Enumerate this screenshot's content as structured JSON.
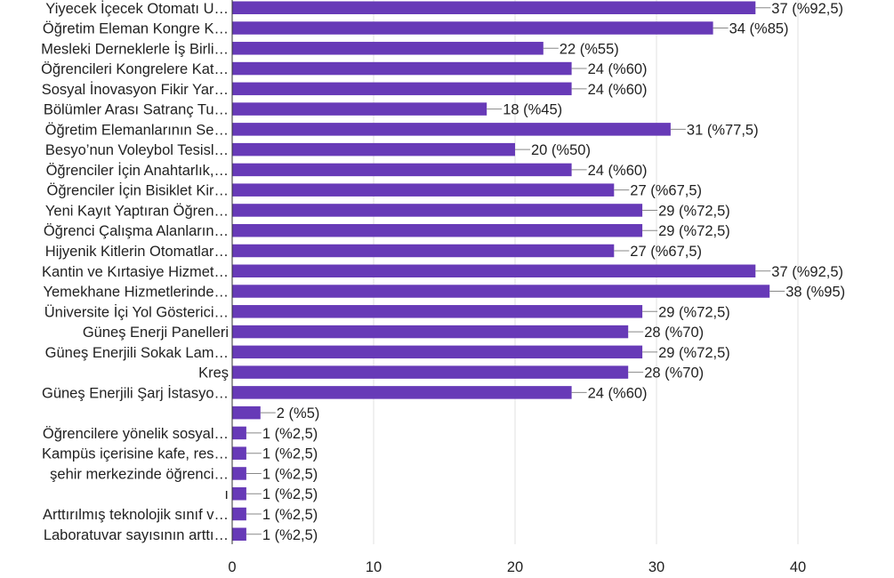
{
  "chart_data": {
    "type": "bar",
    "orientation": "horizontal",
    "categories": [
      "Yiyecek İçecek Otomatı U…",
      "Öğretim Eleman Kongre K…",
      "Mesleki Derneklerle İş Birli…",
      "Öğrencileri Kongrelere Kat…",
      "Sosyal İnovasyon Fikir Yar…",
      "Bölümler Arası Satranç Tu…",
      "Öğretim Elemanlarının Se…",
      "Besyo’nun Voleybol Tesisl…",
      "Öğrenciler İçin Anahtarlık,…",
      "Öğrenciler İçin Bisiklet Kir…",
      "Yeni Kayıt Yaptıran Öğren…",
      "Öğrenci Çalışma Alanların…",
      "Hijyenik Kitlerin Otomatlar…",
      "Kantin ve Kırtasiye Hizmet…",
      "Yemekhane Hizmetlerinde…",
      "Üniversite İçi Yol Gösterici…",
      "Güneş Enerji Panelleri",
      "Güneş Enerjili Sokak Lam…",
      "Kreş",
      "Güneş Enerjili Şarj İstasyo…",
      "",
      "Öğrencilere yönelik sosyal…",
      "Kampüs içerisine kafe, res…",
      "şehir merkezinde öğrenci…",
      "ı",
      "Arttırılmış teknolojik sınıf v…",
      "Laboratuvar sayısının arttı…"
    ],
    "values": [
      37,
      34,
      22,
      24,
      24,
      18,
      31,
      20,
      24,
      27,
      29,
      29,
      27,
      37,
      38,
      29,
      28,
      29,
      28,
      24,
      2,
      1,
      1,
      1,
      1,
      1,
      1
    ],
    "data_labels": [
      "37 (%92,5)",
      "34 (%85)",
      "22 (%55)",
      "24 (%60)",
      "24 (%60)",
      "18 (%45)",
      "31 (%77,5)",
      "20 (%50)",
      "24 (%60)",
      "27 (%67,5)",
      "29 (%72,5)",
      "29 (%72,5)",
      "27 (%67,5)",
      "37 (%92,5)",
      "38 (%95)",
      "29 (%72,5)",
      "28 (%70)",
      "29 (%72,5)",
      "28 (%70)",
      "24 (%60)",
      "2 (%5)",
      "1 (%2,5)",
      "1 (%2,5)",
      "1 (%2,5)",
      "1 (%2,5)",
      "1 (%2,5)",
      "1 (%2,5)"
    ],
    "xlim": [
      0,
      40
    ],
    "x_ticks": [
      "0",
      "10",
      "20",
      "30",
      "40"
    ],
    "x_tick_values": [
      0,
      10,
      20,
      30,
      40
    ],
    "grid": true,
    "colors": {
      "bar": "#673ab7",
      "grid": "#e0e0e0",
      "axis": "#333333",
      "label_line": "#888888"
    }
  }
}
